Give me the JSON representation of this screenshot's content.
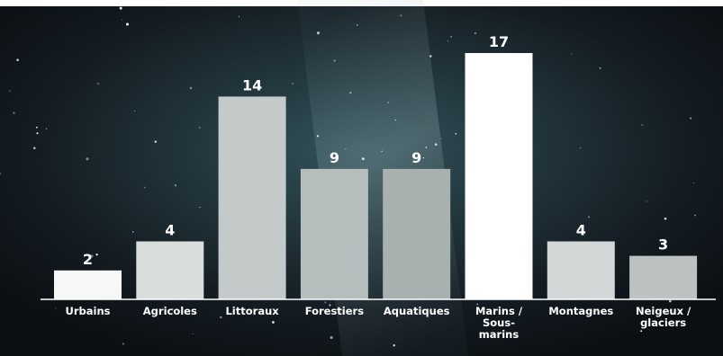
{
  "chart_data": {
    "type": "bar",
    "categories": [
      [
        "Urbains"
      ],
      [
        "Agricoles"
      ],
      [
        "Littoraux"
      ],
      [
        "Forestiers"
      ],
      [
        "Aquatiques"
      ],
      [
        "Marins /",
        "Sous-",
        "marins"
      ],
      [
        "Montagnes"
      ],
      [
        "Neigeux /",
        "glaciers"
      ]
    ],
    "values": [
      2,
      4,
      14,
      9,
      9,
      17,
      4,
      3
    ],
    "data_labels": [
      "2",
      "4",
      "14",
      "9",
      "9",
      "17",
      "4",
      "3"
    ],
    "title": "",
    "xlabel": "",
    "ylabel": "",
    "ylim": [
      0,
      17
    ],
    "grid": false,
    "legend": "none",
    "background": "starry night sky photo",
    "bar_colors": [
      "#f6f7f7",
      "#d9dddc",
      "#c4c9c9",
      "#b6bdbd",
      "#a8b0b0",
      "#ffffff",
      "#d3d7d7",
      "#bcc2c2"
    ],
    "label_color": "#ffffff",
    "axis_color": "#ffffff"
  }
}
